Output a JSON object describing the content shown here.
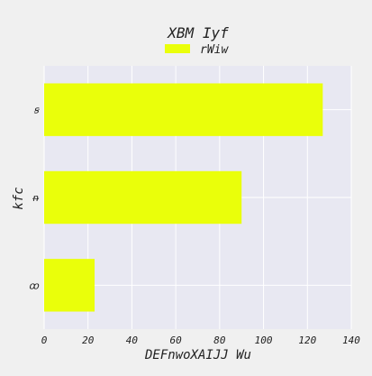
{
  "chart_data": {
    "type": "bar",
    "orientation": "horizontal",
    "title": "XBM Iyf",
    "xlabel": "DEFnwoXAIJJ Wu",
    "ylabel": "kfc",
    "categories": [
      "ꝏ",
      "ᵰ",
      "ꞩ"
    ],
    "series": [
      {
        "name": "rWiw",
        "values": [
          23,
          90,
          127
        ]
      }
    ],
    "xlim": [
      0,
      140
    ],
    "xticks": [
      0,
      20,
      40,
      60,
      80,
      100,
      120,
      140
    ],
    "grid": true,
    "legend_position": "top-center",
    "colors": {
      "bar": "#eaff0a",
      "plot_background": "#e8e8f2",
      "figure_background": "#f0f0f0",
      "grid": "#ffffff"
    }
  }
}
